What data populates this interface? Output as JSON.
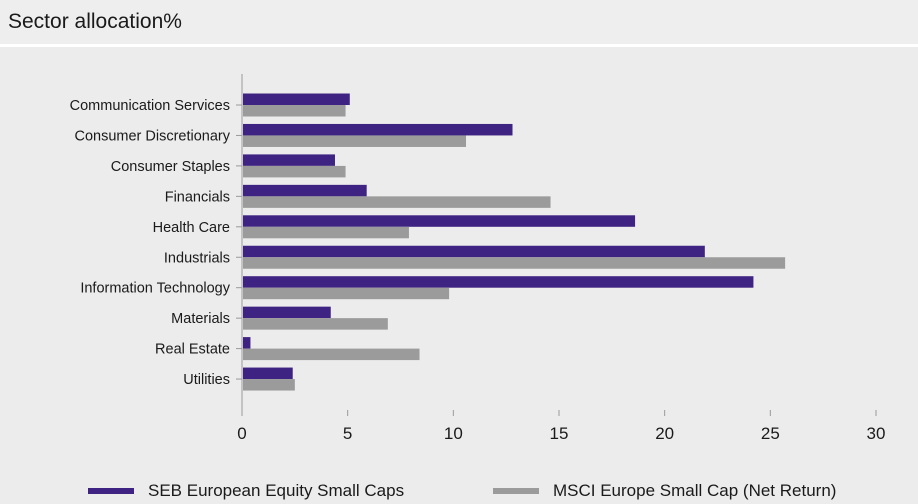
{
  "header": {
    "title": "Sector allocation%"
  },
  "colors": {
    "series0": "#3f2382",
    "series1": "#9b9b9b",
    "axis": "#9a9a9a"
  },
  "chart_data": {
    "type": "bar",
    "orientation": "horizontal",
    "categories": [
      "Communication Services",
      "Consumer Discretionary",
      "Consumer Staples",
      "Financials",
      "Health Care",
      "Industrials",
      "Information Technology",
      "Materials",
      "Real Estate",
      "Utilities"
    ],
    "series": [
      {
        "name": "SEB European Equity Small Caps",
        "values": [
          5.1,
          12.8,
          4.4,
          5.9,
          18.6,
          21.9,
          24.2,
          4.2,
          0.4,
          2.4
        ]
      },
      {
        "name": "MSCI Europe Small Cap (Net Return)",
        "values": [
          4.9,
          10.6,
          4.9,
          14.6,
          7.9,
          25.7,
          9.8,
          6.9,
          8.4,
          2.5
        ]
      }
    ],
    "xlim": [
      0,
      30
    ],
    "xticks": [
      0,
      5,
      10,
      15,
      20,
      25,
      30
    ],
    "grid": false,
    "legend_position": "bottom"
  }
}
